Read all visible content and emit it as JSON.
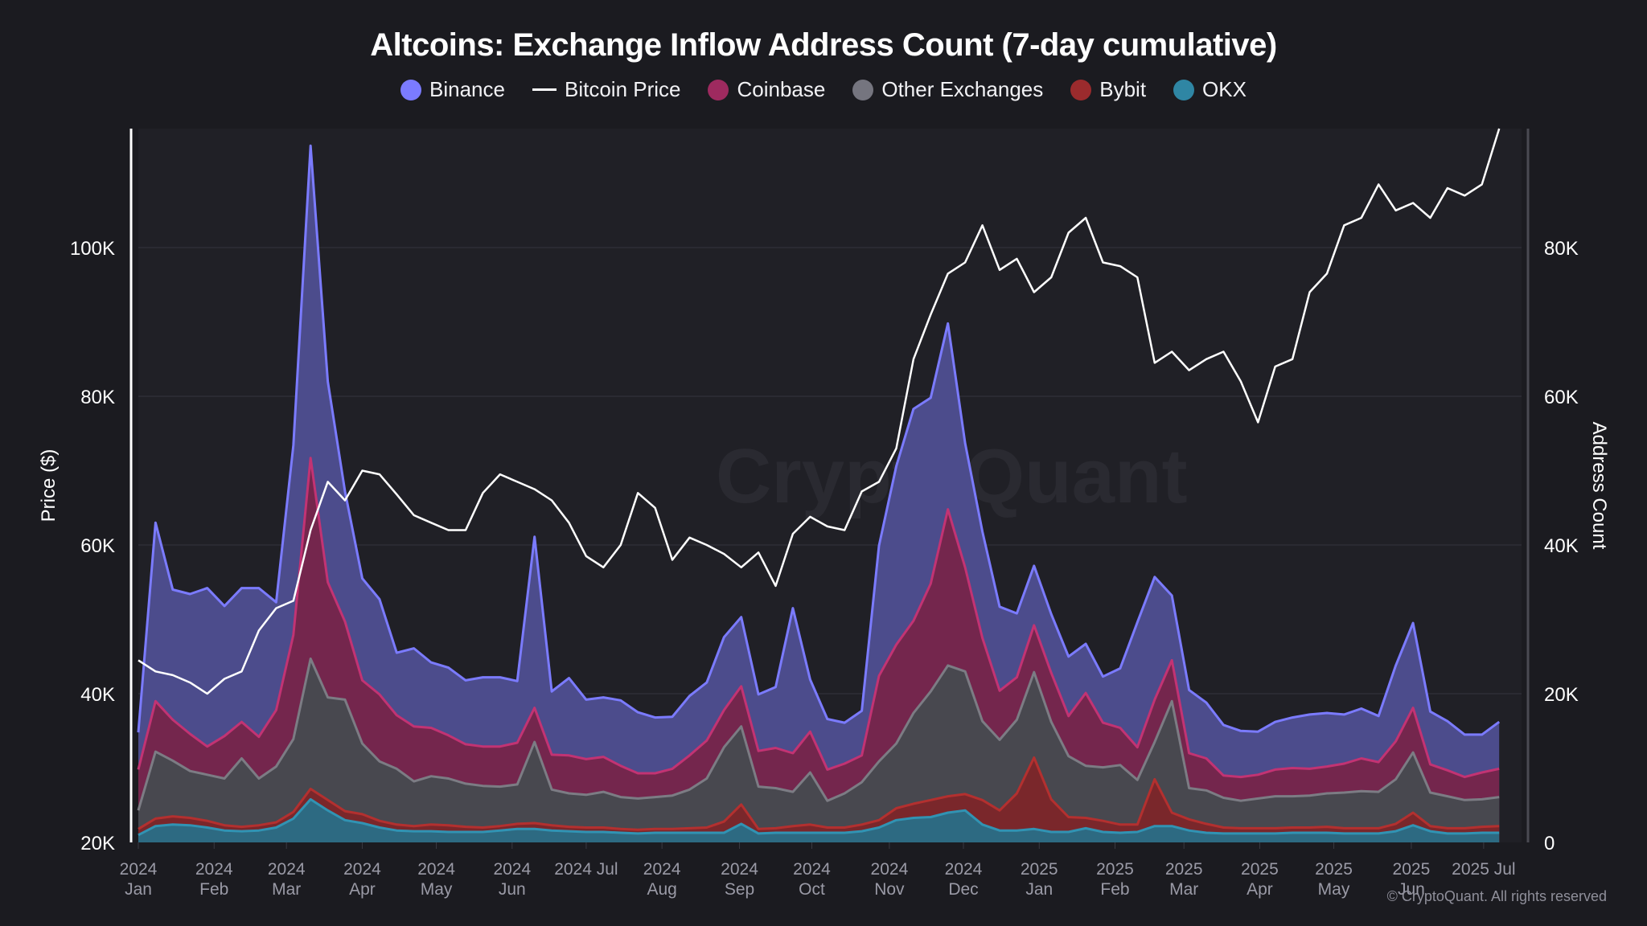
{
  "chart_data": {
    "type": "area",
    "stacked": true,
    "title": "Altcoins: Exchange Inflow Address Count (7-day cumulative)",
    "ylabel_left": "Price ($)",
    "ylabel_right": "Address Count",
    "ylim_left": [
      20000,
      116000
    ],
    "ylim_right": [
      0,
      96000
    ],
    "left_ticks": [
      "20K",
      "40K",
      "60K",
      "80K",
      "100K"
    ],
    "left_tick_values": [
      20000,
      40000,
      60000,
      80000,
      100000
    ],
    "right_ticks": [
      "0",
      "20K",
      "40K",
      "60K",
      "80K"
    ],
    "right_tick_values": [
      0,
      20000,
      40000,
      60000,
      80000
    ],
    "x_ticks": [
      {
        "line1": "2024",
        "line2": "Jan",
        "week": 0
      },
      {
        "line1": "2024",
        "line2": "Feb",
        "week": 4.4
      },
      {
        "line1": "2024",
        "line2": "Mar",
        "week": 8.6
      },
      {
        "line1": "2024",
        "line2": "Apr",
        "week": 13
      },
      {
        "line1": "2024",
        "line2": "May",
        "week": 17.3
      },
      {
        "line1": "2024",
        "line2": "Jun",
        "week": 21.7
      },
      {
        "line1": "2024 Jul",
        "line2": "",
        "week": 26
      },
      {
        "line1": "2024",
        "line2": "Aug",
        "week": 30.4
      },
      {
        "line1": "2024",
        "line2": "Sep",
        "week": 34.9
      },
      {
        "line1": "2024",
        "line2": "Oct",
        "week": 39.1
      },
      {
        "line1": "2024",
        "line2": "Nov",
        "week": 43.6
      },
      {
        "line1": "2024",
        "line2": "Dec",
        "week": 47.9
      },
      {
        "line1": "2025",
        "line2": "Jan",
        "week": 52.3
      },
      {
        "line1": "2025",
        "line2": "Feb",
        "week": 56.7
      },
      {
        "line1": "2025",
        "line2": "Mar",
        "week": 60.7
      },
      {
        "line1": "2025",
        "line2": "Apr",
        "week": 65.1
      },
      {
        "line1": "2025",
        "line2": "May",
        "week": 69.4
      },
      {
        "line1": "2025",
        "line2": "Jun",
        "week": 73.9
      },
      {
        "line1": "2025 Jul",
        "line2": "",
        "week": 78.1
      }
    ],
    "x_unit": "weeks since 2024-01-01",
    "x": [
      0,
      1,
      2,
      3,
      4,
      5,
      6,
      7,
      8,
      9,
      10,
      11,
      12,
      13,
      14,
      15,
      16,
      17,
      18,
      19,
      20,
      21,
      22,
      23,
      24,
      25,
      26,
      27,
      28,
      29,
      30,
      31,
      32,
      33,
      34,
      35,
      36,
      37,
      38,
      39,
      40,
      41,
      42,
      43,
      44,
      45,
      46,
      47,
      48,
      49,
      50,
      51,
      52,
      53,
      54,
      55,
      56,
      57,
      58,
      59,
      60,
      61,
      62,
      63,
      64,
      65,
      66,
      67,
      68,
      69,
      70,
      71,
      72,
      73,
      74,
      75,
      76,
      77,
      78,
      79
    ],
    "series": [
      {
        "name": "OKX",
        "color": "#2e88a6",
        "values": [
          1000,
          2200,
          2400,
          2300,
          2000,
          1600,
          1500,
          1600,
          2000,
          3200,
          5800,
          4300,
          3000,
          2600,
          2000,
          1600,
          1500,
          1500,
          1400,
          1400,
          1400,
          1600,
          1800,
          1800,
          1600,
          1500,
          1400,
          1400,
          1300,
          1200,
          1300,
          1300,
          1300,
          1300,
          1300,
          2500,
          1200,
          1300,
          1300,
          1300,
          1300,
          1300,
          1500,
          2000,
          3000,
          3300,
          3400,
          4000,
          4300,
          2400,
          1600,
          1600,
          1800,
          1400,
          1400,
          1900,
          1400,
          1300,
          1400,
          2200,
          2200,
          1600,
          1300,
          1200,
          1200,
          1200,
          1200,
          1300,
          1300,
          1300,
          1200,
          1200,
          1200,
          1500,
          2300,
          1500,
          1200,
          1200,
          1300,
          1300
        ]
      },
      {
        "name": "Bybit",
        "color": "#8c2a2c",
        "values": [
          800,
          1000,
          1100,
          1000,
          900,
          700,
          600,
          700,
          700,
          900,
          1400,
          1400,
          1200,
          1200,
          900,
          800,
          700,
          900,
          900,
          700,
          600,
          600,
          700,
          800,
          700,
          600,
          600,
          600,
          500,
          500,
          500,
          500,
          600,
          700,
          1500,
          2600,
          600,
          600,
          900,
          1100,
          700,
          700,
          900,
          1000,
          1600,
          1900,
          2300,
          2200,
          2200,
          3300,
          2700,
          5000,
          9600,
          4400,
          2000,
          1400,
          1500,
          1100,
          1000,
          6300,
          1800,
          1500,
          1200,
          800,
          700,
          700,
          700,
          700,
          700,
          800,
          700,
          700,
          700,
          1000,
          1700,
          700,
          700,
          700,
          800,
          900
        ]
      },
      {
        "name": "Other Exchanges",
        "color": "#5e5e66",
        "values": [
          2500,
          9000,
          7500,
          6300,
          6200,
          6300,
          9200,
          6300,
          7500,
          9800,
          17500,
          13800,
          15000,
          9500,
          8000,
          7500,
          6000,
          6500,
          6300,
          5800,
          5600,
          5300,
          5300,
          10900,
          4800,
          4500,
          4400,
          4800,
          4300,
          4200,
          4300,
          4500,
          5200,
          6600,
          10000,
          10500,
          5700,
          5400,
          4600,
          7000,
          3600,
          4600,
          5700,
          7900,
          8700,
          12200,
          14600,
          17600,
          16500,
          10600,
          9500,
          9900,
          11500,
          10400,
          8200,
          7000,
          7200,
          8000,
          6000,
          5000,
          15000,
          4200,
          4500,
          4000,
          3700,
          4000,
          4300,
          4200,
          4300,
          4500,
          4800,
          5000,
          4900,
          6000,
          8100,
          4500,
          4300,
          3800,
          3700,
          3900
        ]
      },
      {
        "name": "Coinbase",
        "color": "#8b2556",
        "values": [
          5500,
          6800,
          5500,
          5000,
          3800,
          5700,
          4900,
          5600,
          7600,
          14000,
          27000,
          15500,
          10500,
          8500,
          9000,
          7200,
          7400,
          6500,
          5800,
          5300,
          5300,
          5400,
          5600,
          4600,
          4700,
          5100,
          4800,
          4700,
          4200,
          3400,
          3200,
          3600,
          4600,
          5100,
          5000,
          5400,
          4800,
          5400,
          5200,
          5500,
          4200,
          4000,
          3600,
          11500,
          13300,
          12400,
          14500,
          21000,
          14000,
          11200,
          6600,
          5700,
          6300,
          6600,
          5400,
          9800,
          6000,
          5000,
          4400,
          5700,
          5500,
          4700,
          4300,
          3000,
          3200,
          3200,
          3600,
          3800,
          3600,
          3600,
          3900,
          4400,
          4000,
          5100,
          6000,
          3800,
          3500,
          3100,
          3600,
          3800
        ]
      },
      {
        "name": "Binance",
        "color": "#6f6fe0",
        "values": [
          5000,
          24000,
          17500,
          18800,
          21300,
          17500,
          18000,
          20000,
          14500,
          25500,
          42000,
          27000,
          17500,
          13700,
          12800,
          8400,
          10500,
          8800,
          9100,
          8600,
          9300,
          9300,
          8300,
          23000,
          8500,
          10400,
          8000,
          8000,
          8800,
          8200,
          7500,
          7000,
          8000,
          7800,
          9800,
          9300,
          7600,
          8200,
          19500,
          7000,
          6800,
          5500,
          6000,
          17500,
          24000,
          28500,
          25000,
          25000,
          16700,
          14300,
          11300,
          8600,
          8000,
          7900,
          8000,
          6600,
          6200,
          8000,
          16800,
          16500,
          8700,
          8500,
          7500,
          6800,
          6200,
          5800,
          6400,
          6800,
          7300,
          7200,
          6600,
          6700,
          6200,
          10200,
          11400,
          7100,
          6600,
          5700,
          5100,
          6300
        ]
      },
      {
        "name": "Bitcoin Price",
        "color": "#ffffff",
        "axis": "left",
        "type": "line",
        "values": [
          44500,
          43000,
          42500,
          41500,
          40000,
          42000,
          43000,
          48500,
          51500,
          52500,
          62000,
          68500,
          66000,
          70000,
          69500,
          66800,
          64000,
          63000,
          62000,
          62000,
          67000,
          69500,
          68500,
          67500,
          66000,
          63000,
          58500,
          57000,
          60000,
          67000,
          65000,
          58000,
          61000,
          60000,
          58800,
          57000,
          59000,
          54500,
          61500,
          63800,
          62500,
          62000,
          67200,
          68500,
          73000,
          85000,
          91000,
          96500,
          98000,
          103000,
          97000,
          98500,
          94000,
          96000,
          102000,
          104000,
          98000,
          97500,
          96000,
          84500,
          86000,
          83500,
          85000,
          86000,
          82000,
          76500,
          84000,
          85000,
          94000,
          96500,
          103000,
          104000,
          108500,
          105000,
          106000,
          104000,
          108000,
          107000,
          108500,
          116000
        ]
      }
    ],
    "legend": [
      {
        "name": "Binance",
        "kind": "dot",
        "color": "#7b7bff"
      },
      {
        "name": "Bitcoin Price",
        "kind": "line",
        "color": "#ffffff"
      },
      {
        "name": "Coinbase",
        "kind": "dot",
        "color": "#9e2a5f"
      },
      {
        "name": "Other Exchanges",
        "kind": "dot",
        "color": "#75757f"
      },
      {
        "name": "Bybit",
        "kind": "dot",
        "color": "#9b2b2d"
      },
      {
        "name": "OKX",
        "kind": "dot",
        "color": "#2f86a4"
      }
    ],
    "legend_position": "top-center",
    "grid": true,
    "watermark": "CryptoQuant"
  },
  "copyright": "© CryptoQuant. All rights reserved"
}
